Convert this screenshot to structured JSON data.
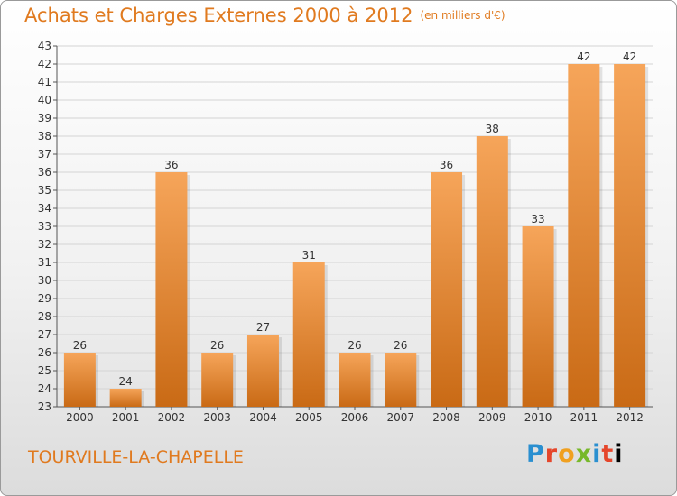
{
  "title": "Achats et Charges Externes 2000 à 2012",
  "unit": "(en milliers d'€)",
  "commune": "TOURVILLE-LA-CHAPELLE",
  "logo": [
    "P",
    "r",
    "o",
    "x",
    "i",
    "t",
    "i"
  ],
  "colors": {
    "bar_top": "#f6a55a",
    "bar_bottom": "#c96a15",
    "accent": "#e07a1f"
  },
  "chart_data": {
    "type": "bar",
    "title": "Achats et Charges Externes 2000 à 2012",
    "subtitle": "(en milliers d'€)",
    "categories": [
      "2000",
      "2001",
      "2002",
      "2003",
      "2004",
      "2005",
      "2006",
      "2007",
      "2008",
      "2009",
      "2010",
      "2011",
      "2012"
    ],
    "values": [
      26,
      24,
      36,
      26,
      27,
      31,
      26,
      26,
      36,
      38,
      33,
      42,
      42
    ],
    "ylim": [
      23,
      43
    ],
    "yticks": [
      23,
      24,
      25,
      26,
      27,
      28,
      29,
      30,
      31,
      32,
      33,
      34,
      35,
      36,
      37,
      38,
      39,
      40,
      41,
      42,
      43
    ],
    "grid": true,
    "legend": "none"
  }
}
